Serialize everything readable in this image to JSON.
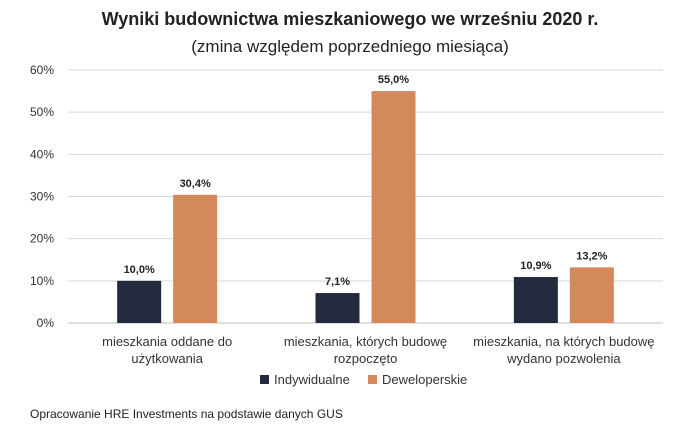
{
  "chart_data": {
    "type": "bar",
    "title": "Wyniki budownictwa mieszkaniowego we wrześniu 2020 r.",
    "subtitle": "(zmina względem poprzedniego miesiąca)",
    "categories": [
      [
        "mieszkania oddane do",
        "użytkowania"
      ],
      [
        "mieszkania, których budowę",
        "rozpoczęto"
      ],
      [
        "mieszkania, na których budowę",
        "wydano pozwolenia"
      ]
    ],
    "series": [
      {
        "name": "Indywidualne",
        "color": "#232a3d",
        "values": [
          10.0,
          7.1,
          10.9
        ],
        "labels": [
          "10,0%",
          "7,1%",
          "10,9%"
        ]
      },
      {
        "name": "Deweloperskie",
        "color": "#d4895b",
        "values": [
          30.4,
          55.0,
          13.2
        ],
        "labels": [
          "30,4%",
          "55,0%",
          "13,2%"
        ]
      }
    ],
    "ylim": [
      0,
      60
    ],
    "yticks": [
      0,
      10,
      20,
      30,
      40,
      50,
      60
    ],
    "ytick_labels": [
      "0%",
      "10%",
      "20%",
      "30%",
      "40%",
      "50%",
      "60%"
    ],
    "grid": true,
    "legend_position": "bottom",
    "source": "Opracowanie HRE Investments na podstawie danych GUS"
  }
}
